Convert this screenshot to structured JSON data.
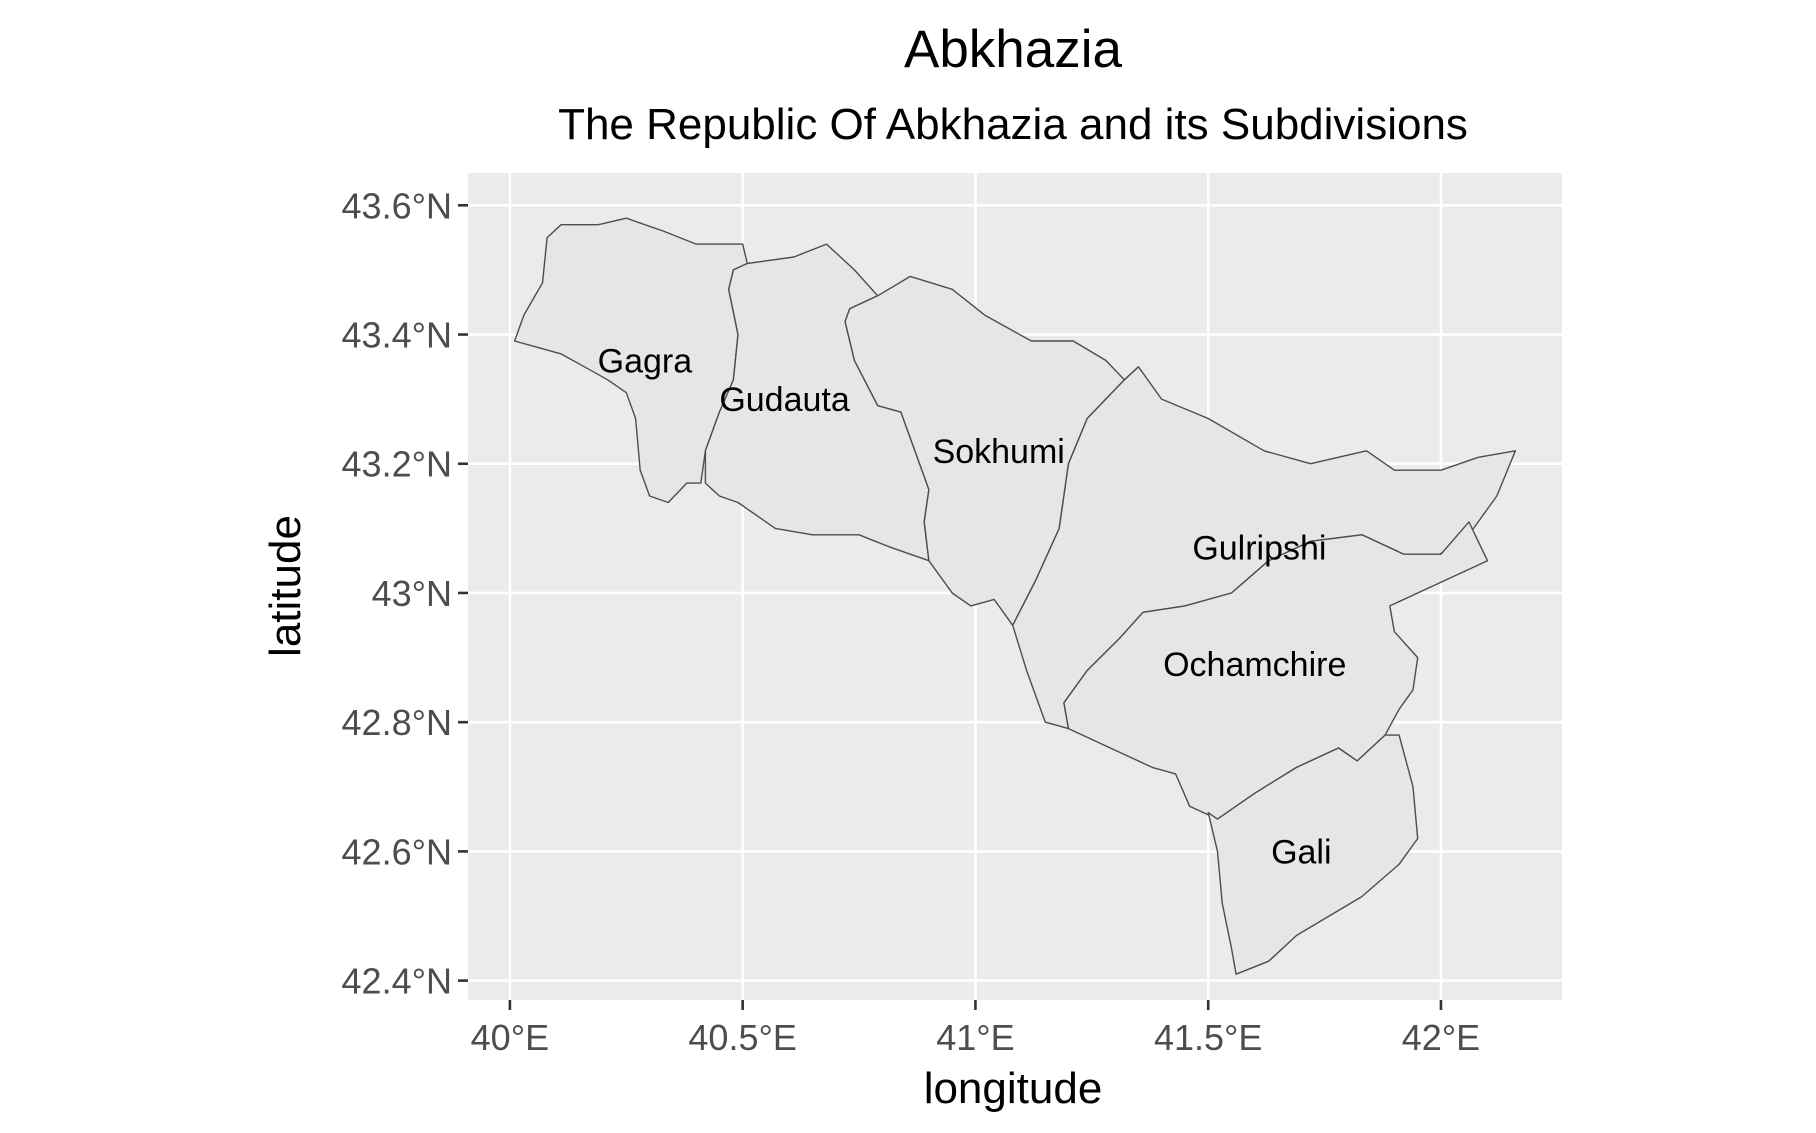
{
  "chart_data": {
    "type": "map",
    "title": "Abkhazia",
    "subtitle": "The Republic Of Abkhazia and its Subdivisions",
    "xlabel": "longitude",
    "ylabel": "latitude",
    "xlim": [
      39.91,
      42.26
    ],
    "ylim": [
      42.37,
      43.65
    ],
    "x_ticks": [
      {
        "value": 40.0,
        "label": "40°E"
      },
      {
        "value": 40.5,
        "label": "40.5°E"
      },
      {
        "value": 41.0,
        "label": "41°E"
      },
      {
        "value": 41.5,
        "label": "41.5°E"
      },
      {
        "value": 42.0,
        "label": "42°E"
      }
    ],
    "y_ticks": [
      {
        "value": 42.4,
        "label": "42.4°N"
      },
      {
        "value": 42.6,
        "label": "42.6°N"
      },
      {
        "value": 42.8,
        "label": "42.8°N"
      },
      {
        "value": 43.0,
        "label": "43°N"
      },
      {
        "value": 43.2,
        "label": "43.2°N"
      },
      {
        "value": 43.4,
        "label": "43.4°N"
      },
      {
        "value": 43.6,
        "label": "43.6°N"
      }
    ],
    "grid": true,
    "panel_color": "#ebebeb",
    "region_fill": "#e6e6e6",
    "border_color": "#4d4d4d",
    "regions": [
      {
        "name": "Gagra",
        "label_at": [
          40.29,
          43.36
        ],
        "boundary": [
          [
            40.01,
            43.39
          ],
          [
            40.06,
            43.38
          ],
          [
            40.11,
            43.37
          ],
          [
            40.16,
            43.35
          ],
          [
            40.21,
            43.33
          ],
          [
            40.25,
            43.31
          ],
          [
            40.27,
            43.27
          ],
          [
            40.28,
            43.19
          ],
          [
            40.3,
            43.15
          ],
          [
            40.34,
            43.14
          ],
          [
            40.38,
            43.17
          ],
          [
            40.41,
            43.17
          ],
          [
            40.42,
            43.22
          ],
          [
            40.45,
            43.28
          ],
          [
            40.48,
            43.33
          ],
          [
            40.49,
            43.4
          ],
          [
            40.47,
            43.47
          ],
          [
            40.48,
            43.5
          ],
          [
            40.51,
            43.51
          ],
          [
            40.5,
            43.54
          ],
          [
            40.4,
            43.54
          ],
          [
            40.33,
            43.56
          ],
          [
            40.25,
            43.58
          ],
          [
            40.19,
            43.57
          ],
          [
            40.11,
            43.57
          ],
          [
            40.08,
            43.55
          ],
          [
            40.07,
            43.48
          ],
          [
            40.03,
            43.43
          ],
          [
            40.01,
            43.39
          ]
        ]
      },
      {
        "name": "Gudauta",
        "label_at": [
          40.59,
          43.3
        ],
        "boundary": [
          [
            40.42,
            43.17
          ],
          [
            40.45,
            43.15
          ],
          [
            40.49,
            43.14
          ],
          [
            40.57,
            43.1
          ],
          [
            40.65,
            43.09
          ],
          [
            40.75,
            43.09
          ],
          [
            40.82,
            43.07
          ],
          [
            40.9,
            43.05
          ],
          [
            40.89,
            43.11
          ],
          [
            40.9,
            43.16
          ],
          [
            40.87,
            43.22
          ],
          [
            40.84,
            43.28
          ],
          [
            40.79,
            43.29
          ],
          [
            40.74,
            43.36
          ],
          [
            40.72,
            43.42
          ],
          [
            40.73,
            43.44
          ],
          [
            40.79,
            43.46
          ],
          [
            40.74,
            43.5
          ],
          [
            40.68,
            43.54
          ],
          [
            40.61,
            43.52
          ],
          [
            40.51,
            43.51
          ],
          [
            40.48,
            43.5
          ],
          [
            40.47,
            43.47
          ],
          [
            40.49,
            43.4
          ],
          [
            40.48,
            43.33
          ],
          [
            40.45,
            43.28
          ],
          [
            40.42,
            43.22
          ],
          [
            40.42,
            43.17
          ]
        ]
      },
      {
        "name": "Sokhumi",
        "label_at": [
          41.05,
          43.22
        ],
        "boundary": [
          [
            40.9,
            43.05
          ],
          [
            40.95,
            43.0
          ],
          [
            40.99,
            42.98
          ],
          [
            41.04,
            42.99
          ],
          [
            41.08,
            42.95
          ],
          [
            41.13,
            43.02
          ],
          [
            41.18,
            43.1
          ],
          [
            41.2,
            43.2
          ],
          [
            41.24,
            43.27
          ],
          [
            41.32,
            43.33
          ],
          [
            41.28,
            43.36
          ],
          [
            41.21,
            43.39
          ],
          [
            41.12,
            43.39
          ],
          [
            41.02,
            43.43
          ],
          [
            40.95,
            43.47
          ],
          [
            40.86,
            43.49
          ],
          [
            40.79,
            43.46
          ],
          [
            40.73,
            43.44
          ],
          [
            40.72,
            43.42
          ],
          [
            40.74,
            43.36
          ],
          [
            40.79,
            43.29
          ],
          [
            40.84,
            43.28
          ],
          [
            40.87,
            43.22
          ],
          [
            40.9,
            43.16
          ],
          [
            40.89,
            43.11
          ],
          [
            40.9,
            43.05
          ]
        ]
      },
      {
        "name": "Gulripshi",
        "label_at": [
          41.61,
          43.07
        ],
        "boundary": [
          [
            41.08,
            42.95
          ],
          [
            41.11,
            42.88
          ],
          [
            41.15,
            42.8
          ],
          [
            41.2,
            42.79
          ],
          [
            41.19,
            42.83
          ],
          [
            41.24,
            42.88
          ],
          [
            41.31,
            42.93
          ],
          [
            41.36,
            42.97
          ],
          [
            41.45,
            42.98
          ],
          [
            41.55,
            43.0
          ],
          [
            41.63,
            43.05
          ],
          [
            41.72,
            43.08
          ],
          [
            41.83,
            43.09
          ],
          [
            41.92,
            43.06
          ],
          [
            41.98,
            43.05
          ],
          [
            42.07,
            43.1
          ],
          [
            42.12,
            43.15
          ],
          [
            42.16,
            43.22
          ],
          [
            42.08,
            43.21
          ],
          [
            42.0,
            43.19
          ],
          [
            41.9,
            43.19
          ],
          [
            41.84,
            43.22
          ],
          [
            41.72,
            43.2
          ],
          [
            41.62,
            43.22
          ],
          [
            41.5,
            43.27
          ],
          [
            41.4,
            43.3
          ],
          [
            41.35,
            43.35
          ],
          [
            41.32,
            43.33
          ],
          [
            41.24,
            43.27
          ],
          [
            41.2,
            43.2
          ],
          [
            41.18,
            43.1
          ],
          [
            41.13,
            43.02
          ],
          [
            41.08,
            42.95
          ]
        ]
      },
      {
        "name": "Ochamchire",
        "label_at": [
          41.6,
          42.89
        ],
        "boundary": [
          [
            41.2,
            42.79
          ],
          [
            41.26,
            42.77
          ],
          [
            41.32,
            42.75
          ],
          [
            41.38,
            42.73
          ],
          [
            41.43,
            42.72
          ],
          [
            41.46,
            42.67
          ],
          [
            41.52,
            42.65
          ],
          [
            41.6,
            42.69
          ],
          [
            41.69,
            42.73
          ],
          [
            41.78,
            42.76
          ],
          [
            41.82,
            42.74
          ],
          [
            41.88,
            42.78
          ],
          [
            41.91,
            42.82
          ],
          [
            41.94,
            42.85
          ],
          [
            41.95,
            42.9
          ],
          [
            41.9,
            42.94
          ],
          [
            41.89,
            42.98
          ],
          [
            41.95,
            43.0
          ],
          [
            42.1,
            43.05
          ],
          [
            42.06,
            43.11
          ],
          [
            42.0,
            43.06
          ],
          [
            41.92,
            43.06
          ],
          [
            41.83,
            43.09
          ],
          [
            41.72,
            43.08
          ],
          [
            41.63,
            43.05
          ],
          [
            41.55,
            43.0
          ],
          [
            41.45,
            42.98
          ],
          [
            41.36,
            42.97
          ],
          [
            41.31,
            42.93
          ],
          [
            41.24,
            42.88
          ],
          [
            41.19,
            42.83
          ],
          [
            41.2,
            42.79
          ]
        ]
      },
      {
        "name": "Gali",
        "label_at": [
          41.7,
          42.6
        ],
        "boundary": [
          [
            41.5,
            42.66
          ],
          [
            41.52,
            42.6
          ],
          [
            41.53,
            42.52
          ],
          [
            41.55,
            42.45
          ],
          [
            41.56,
            42.41
          ],
          [
            41.63,
            42.43
          ],
          [
            41.69,
            42.47
          ],
          [
            41.76,
            42.5
          ],
          [
            41.83,
            42.53
          ],
          [
            41.91,
            42.58
          ],
          [
            41.95,
            42.62
          ],
          [
            41.94,
            42.7
          ],
          [
            41.91,
            42.78
          ],
          [
            41.88,
            42.78
          ],
          [
            41.82,
            42.74
          ],
          [
            41.78,
            42.76
          ],
          [
            41.69,
            42.73
          ],
          [
            41.6,
            42.69
          ],
          [
            41.52,
            42.65
          ],
          [
            41.5,
            42.66
          ]
        ]
      }
    ]
  }
}
